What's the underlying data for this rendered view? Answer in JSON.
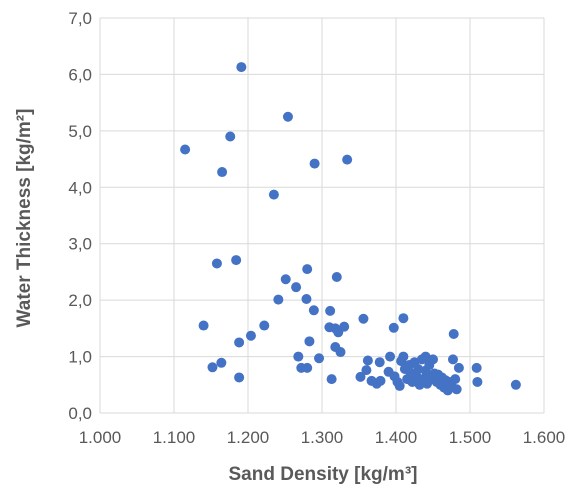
{
  "chart_data": {
    "type": "scatter",
    "title": "",
    "xlabel": "Sand Density [kg/m³]",
    "ylabel": "Water Thickness [kg/m²]",
    "xlim": [
      1000,
      1600
    ],
    "ylim": [
      0,
      7
    ],
    "x_ticks": [
      1000,
      1100,
      1200,
      1300,
      1400,
      1500,
      1600
    ],
    "x_tick_labels": [
      "1.000",
      "1.100",
      "1.200",
      "1.300",
      "1.400",
      "1.500",
      "1.600"
    ],
    "y_ticks": [
      0,
      1,
      2,
      3,
      4,
      5,
      6,
      7
    ],
    "y_tick_labels": [
      "0,0",
      "1,0",
      "2,0",
      "3,0",
      "4,0",
      "5,0",
      "6,0",
      "7,0"
    ],
    "grid": true,
    "legend": "none",
    "marker_color": "#4472C4",
    "gridline_color": "#D9D9D9",
    "points": [
      {
        "x": 1115,
        "y": 4.67
      },
      {
        "x": 1176,
        "y": 4.9
      },
      {
        "x": 1165,
        "y": 4.27
      },
      {
        "x": 1191,
        "y": 6.13
      },
      {
        "x": 1254,
        "y": 5.25
      },
      {
        "x": 1290,
        "y": 4.42
      },
      {
        "x": 1334,
        "y": 4.49
      },
      {
        "x": 1235,
        "y": 3.87
      },
      {
        "x": 1158,
        "y": 2.65
      },
      {
        "x": 1184,
        "y": 2.71
      },
      {
        "x": 1140,
        "y": 1.55
      },
      {
        "x": 1152,
        "y": 0.81
      },
      {
        "x": 1164,
        "y": 0.89
      },
      {
        "x": 1188,
        "y": 1.25
      },
      {
        "x": 1188,
        "y": 0.63
      },
      {
        "x": 1204,
        "y": 1.37
      },
      {
        "x": 1222,
        "y": 1.55
      },
      {
        "x": 1241,
        "y": 2.01
      },
      {
        "x": 1251,
        "y": 2.37
      },
      {
        "x": 1265,
        "y": 2.23
      },
      {
        "x": 1280,
        "y": 2.55
      },
      {
        "x": 1279,
        "y": 2.02
      },
      {
        "x": 1289,
        "y": 1.82
      },
      {
        "x": 1283,
        "y": 1.27
      },
      {
        "x": 1268,
        "y": 1.0
      },
      {
        "x": 1272,
        "y": 0.8
      },
      {
        "x": 1280,
        "y": 0.8
      },
      {
        "x": 1296,
        "y": 0.97
      },
      {
        "x": 1311,
        "y": 1.81
      },
      {
        "x": 1310,
        "y": 1.52
      },
      {
        "x": 1318,
        "y": 1.5
      },
      {
        "x": 1320,
        "y": 2.41
      },
      {
        "x": 1322,
        "y": 1.43
      },
      {
        "x": 1330,
        "y": 1.53
      },
      {
        "x": 1318,
        "y": 1.17
      },
      {
        "x": 1325,
        "y": 1.08
      },
      {
        "x": 1313,
        "y": 0.6
      },
      {
        "x": 1352,
        "y": 0.64
      },
      {
        "x": 1356,
        "y": 1.67
      },
      {
        "x": 1362,
        "y": 0.93
      },
      {
        "x": 1360,
        "y": 0.76
      },
      {
        "x": 1367,
        "y": 0.57
      },
      {
        "x": 1374,
        "y": 0.52
      },
      {
        "x": 1379,
        "y": 0.57
      },
      {
        "x": 1378,
        "y": 0.9
      },
      {
        "x": 1390,
        "y": 0.73
      },
      {
        "x": 1392,
        "y": 1.0
      },
      {
        "x": 1397,
        "y": 1.51
      },
      {
        "x": 1398,
        "y": 0.65
      },
      {
        "x": 1402,
        "y": 0.55
      },
      {
        "x": 1405,
        "y": 0.48
      },
      {
        "x": 1407,
        "y": 0.92
      },
      {
        "x": 1410,
        "y": 1.68
      },
      {
        "x": 1410,
        "y": 1.0
      },
      {
        "x": 1412,
        "y": 0.78
      },
      {
        "x": 1415,
        "y": 0.6
      },
      {
        "x": 1418,
        "y": 0.85
      },
      {
        "x": 1420,
        "y": 0.7
      },
      {
        "x": 1422,
        "y": 0.55
      },
      {
        "x": 1425,
        "y": 0.9
      },
      {
        "x": 1428,
        "y": 0.65
      },
      {
        "x": 1430,
        "y": 0.78
      },
      {
        "x": 1432,
        "y": 0.5
      },
      {
        "x": 1435,
        "y": 0.95
      },
      {
        "x": 1437,
        "y": 0.6
      },
      {
        "x": 1440,
        "y": 1.0
      },
      {
        "x": 1440,
        "y": 0.75
      },
      {
        "x": 1442,
        "y": 0.52
      },
      {
        "x": 1445,
        "y": 0.85
      },
      {
        "x": 1447,
        "y": 0.62
      },
      {
        "x": 1450,
        "y": 0.95
      },
      {
        "x": 1452,
        "y": 0.7
      },
      {
        "x": 1455,
        "y": 0.55
      },
      {
        "x": 1457,
        "y": 0.68
      },
      {
        "x": 1460,
        "y": 0.5
      },
      {
        "x": 1462,
        "y": 0.63
      },
      {
        "x": 1465,
        "y": 0.45
      },
      {
        "x": 1467,
        "y": 0.58
      },
      {
        "x": 1470,
        "y": 0.4
      },
      {
        "x": 1472,
        "y": 0.55
      },
      {
        "x": 1475,
        "y": 0.48
      },
      {
        "x": 1478,
        "y": 1.4
      },
      {
        "x": 1477,
        "y": 0.95
      },
      {
        "x": 1480,
        "y": 0.6
      },
      {
        "x": 1482,
        "y": 0.42
      },
      {
        "x": 1485,
        "y": 0.8
      },
      {
        "x": 1509,
        "y": 0.8
      },
      {
        "x": 1510,
        "y": 0.55
      },
      {
        "x": 1562,
        "y": 0.5
      }
    ]
  }
}
